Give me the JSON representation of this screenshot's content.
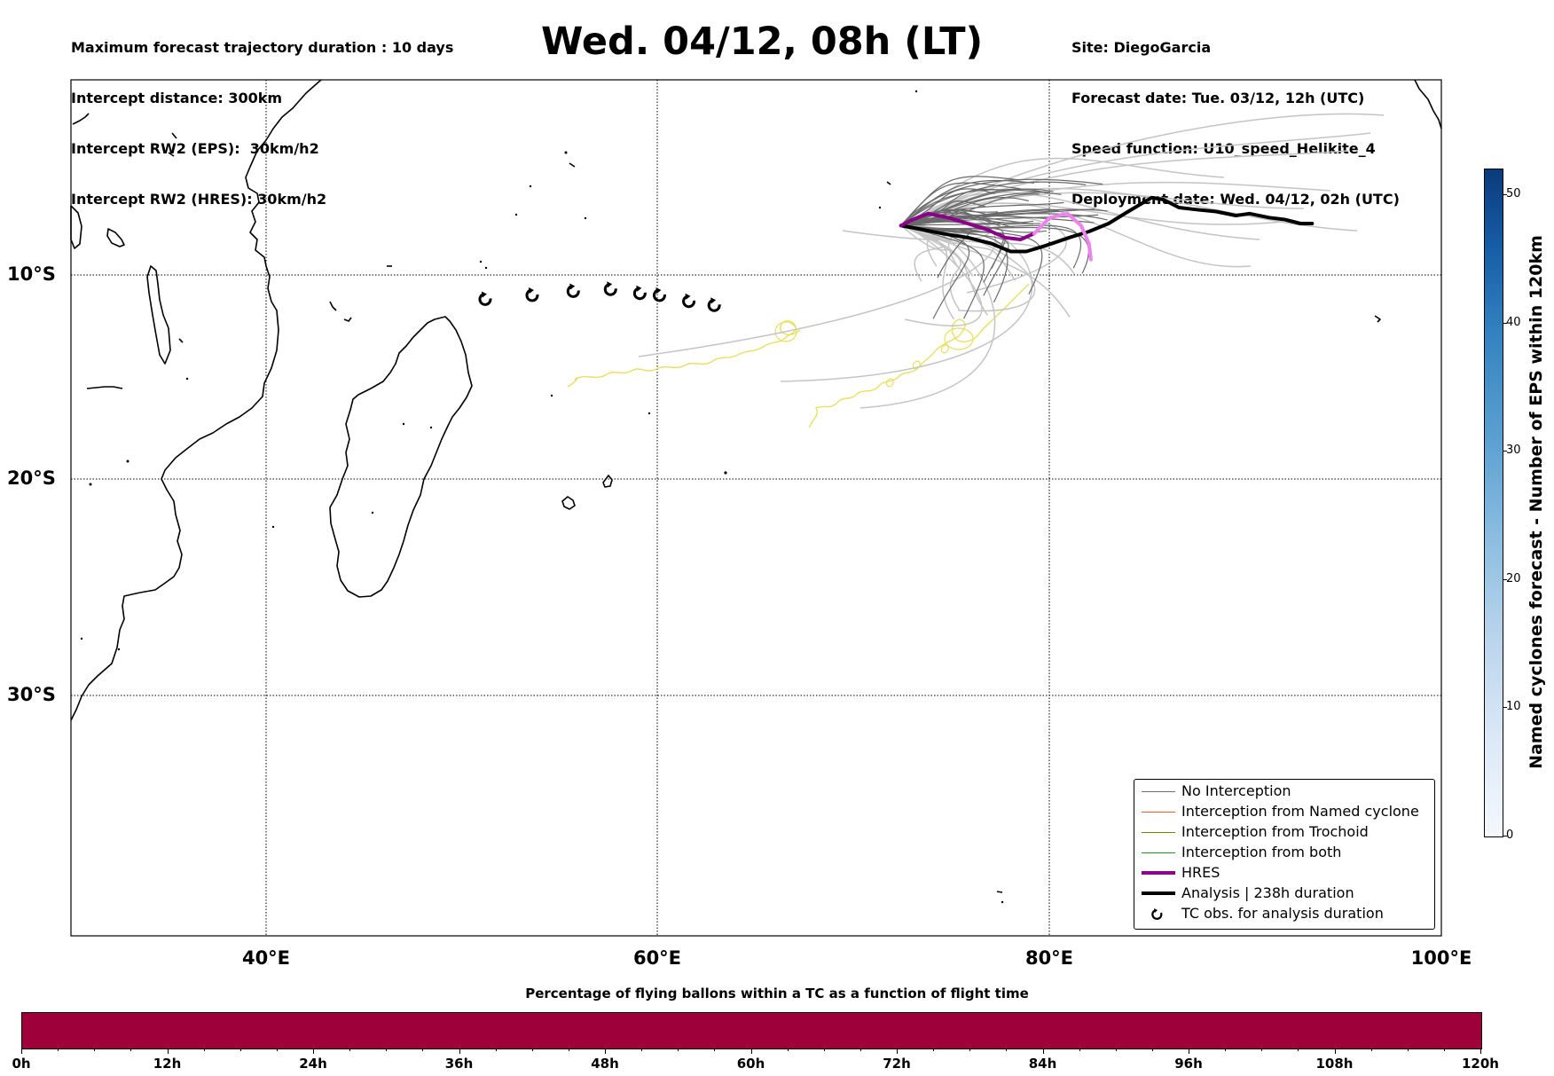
{
  "header": {
    "left": [
      "Maximum forecast trajectory duration : 10 days",
      "Intercept distance: 300km",
      "Intercept RW2 (EPS):  30km/h2",
      "Intercept RW2 (HRES): 30km/h2"
    ],
    "title": "Wed. 04/12, 08h (LT)",
    "right": [
      "Site: DiegoGarcia",
      "Forecast date: Tue. 03/12, 12h (UTC)",
      "Speed function: U10_speed_Helikite_4",
      "Deployment date: Wed. 04/12, 02h (UTC)"
    ]
  },
  "map": {
    "lon_range": [
      30,
      100
    ],
    "lat_range": [
      -42,
      0
    ],
    "lat_labels": [
      "10°S",
      "20°S",
      "30°S"
    ],
    "lon_labels": [
      "40°E",
      "60°E",
      "80°E",
      "100°E"
    ],
    "grid": "dotted"
  },
  "legend": {
    "items": [
      {
        "label": "No Interception",
        "color": "#707070",
        "icon": "line"
      },
      {
        "label": "Interception from Named cyclone",
        "color": "#ff5a1f",
        "icon": "line"
      },
      {
        "label": "Interception from Trochoid",
        "color": "#808000",
        "icon": "line"
      },
      {
        "label": "Interception from both",
        "color": "#1a9b1a",
        "icon": "line"
      },
      {
        "label": "HRES",
        "color": "#8b008b",
        "icon": "thick-line"
      },
      {
        "label": "Analysis | 238h duration",
        "color": "#000000",
        "icon": "thick-line"
      },
      {
        "label": "TC obs. for analysis duration",
        "color": "#000000",
        "icon": "cyclone-symbol-icon"
      }
    ]
  },
  "colorbar": {
    "label": "Named cyclones forecast - Number of EPS within 120km",
    "ticks": [
      "0",
      "10",
      "20",
      "30",
      "40",
      "50"
    ],
    "range": [
      0,
      52
    ]
  },
  "bottom_bar": {
    "title": "Percentage of flying ballons within a TC as a function of flight time",
    "labels": [
      "0h",
      "12h",
      "24h",
      "36h",
      "48h",
      "60h",
      "72h",
      "84h",
      "96h",
      "108h",
      "120h"
    ],
    "fill_color": "#9e003a"
  },
  "tracks": {
    "site": "DiegoGarcia",
    "analysis": [
      [
        72.4,
        -7.3
      ],
      [
        73.5,
        -7.5
      ],
      [
        74.5,
        -7.7
      ],
      [
        75.8,
        -7.9
      ],
      [
        77,
        -8.2
      ],
      [
        78,
        -8.6
      ],
      [
        78.8,
        -8.6
      ],
      [
        79.8,
        -8.3
      ],
      [
        81,
        -7.9
      ],
      [
        82,
        -7.6
      ],
      [
        83,
        -7.2
      ],
      [
        84,
        -6.6
      ],
      [
        85.2,
        -5.9
      ],
      [
        85.8,
        -6.0
      ],
      [
        86.6,
        -6.4
      ],
      [
        87.5,
        -6.5
      ],
      [
        88.5,
        -6.6
      ],
      [
        89.5,
        -6.8
      ],
      [
        90.2,
        -6.7
      ],
      [
        91.2,
        -6.9
      ],
      [
        92,
        -7.0
      ],
      [
        92.8,
        -7.2
      ],
      [
        93.4,
        -7.2
      ]
    ],
    "hres": [
      [
        72.4,
        -7.3
      ],
      [
        73.0,
        -7.0
      ],
      [
        73.8,
        -6.7
      ],
      [
        74.8,
        -6.9
      ],
      [
        75.8,
        -7.2
      ],
      [
        76.8,
        -7.5
      ],
      [
        77.7,
        -7.9
      ],
      [
        78.5,
        -8.0
      ],
      [
        79.2,
        -7.7
      ],
      [
        80.0,
        -6.9
      ],
      [
        80.9,
        -6.7
      ],
      [
        81.6,
        -7.3
      ],
      [
        82.0,
        -8.2
      ],
      [
        82.1,
        -9.0
      ]
    ],
    "hres_light_start_index": 8,
    "tc_obs": [
      [
        51.2,
        -11.0
      ],
      [
        53.6,
        -10.8
      ],
      [
        55.7,
        -10.6
      ],
      [
        57.6,
        -10.5
      ],
      [
        59.1,
        -10.7
      ],
      [
        60.1,
        -10.8
      ],
      [
        61.6,
        -11.1
      ],
      [
        62.9,
        -11.3
      ]
    ]
  }
}
